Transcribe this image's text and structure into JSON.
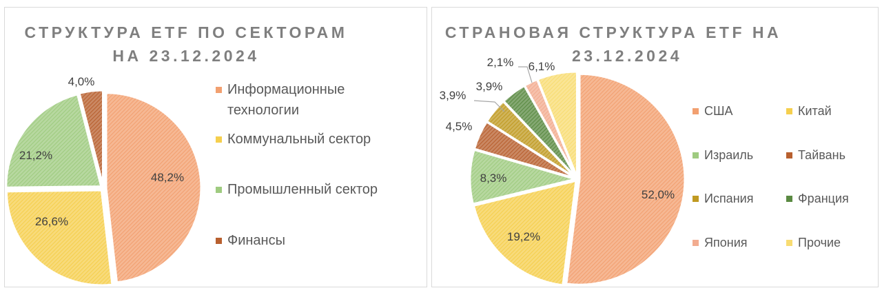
{
  "chart_data": [
    {
      "type": "pie",
      "title": "СТРУКТУРА ETF ПО СЕКТОРАМ НА 23.12.2024",
      "title_lines": [
        "СТРУКТУРА ETF ПО СЕКТОРАМ",
        "НА 23.12.2024"
      ],
      "categories": [
        "Информационные технологии",
        "Коммунальный сектор",
        "Промышленный сектор",
        "Финансы"
      ],
      "values": [
        48.2,
        26.6,
        21.2,
        4.0
      ],
      "labels": [
        "48,2%",
        "26,6%",
        "21,2%",
        "4,0%"
      ],
      "colors": [
        "#F2A070",
        "#F5CF4E",
        "#9FCB80",
        "#B8602F"
      ],
      "legend": "right",
      "pattern": "diagonal-hatch"
    },
    {
      "type": "pie",
      "title": "СТРАНОВАЯ СТРУКТУРА ETF НА 23.12.2024",
      "title_lines": [
        "СТРАНОВАЯ СТРУКТУРА ETF НА",
        "23.12.2024"
      ],
      "categories": [
        "США",
        "Китай",
        "Израиль",
        "Тайвань",
        "Испания",
        "Франция",
        "Япония",
        "Прочие"
      ],
      "values": [
        52.0,
        19.2,
        8.3,
        4.5,
        3.9,
        3.9,
        2.1,
        6.1
      ],
      "labels": [
        "52,0%",
        "19,2%",
        "8,3%",
        "4,5%",
        "3,9%",
        "3,9%",
        "2,1%",
        "6,1%"
      ],
      "colors": [
        "#F2A070",
        "#F5CF4E",
        "#9FCB80",
        "#B8602F",
        "#C09A22",
        "#5A8A42",
        "#F2AC90",
        "#F8DC72"
      ],
      "legend": "right",
      "pattern": "diagonal-hatch"
    }
  ]
}
